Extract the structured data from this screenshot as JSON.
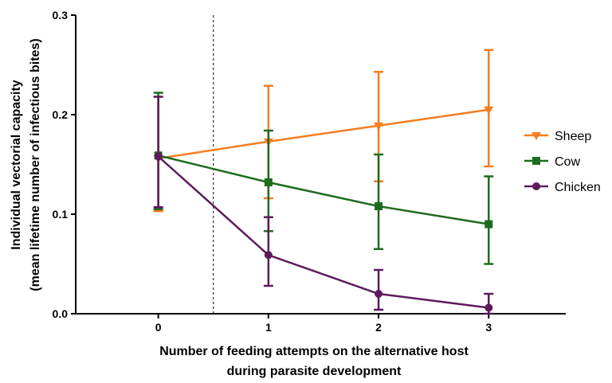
{
  "chart_data": {
    "type": "line",
    "xlabel_lines": [
      "Number of feeding attempts on the alternative host",
      "during parasite development"
    ],
    "ylabel_lines": [
      "Individual vectorial capacity",
      "(mean lifetime number of infectious bites)"
    ],
    "x": [
      0,
      1,
      2,
      3
    ],
    "x_tick_labels": [
      "0",
      "1",
      "2",
      "3"
    ],
    "xlim": [
      -0.75,
      3.7
    ],
    "ylim": [
      0,
      0.3
    ],
    "y_ticks": [
      0.0,
      0.1,
      0.2,
      0.3
    ],
    "y_tick_labels": [
      "0.0",
      "0.1",
      "0.2",
      "0.3"
    ],
    "reference_line_x": 0.5,
    "grid": false,
    "legend_position": "right",
    "series": [
      {
        "name": "Sheep",
        "color": "#f47d20",
        "marker": "triangle-down",
        "values": [
          0.156,
          0.173,
          0.189,
          0.205
        ],
        "err_low": [
          0.103,
          0.116,
          0.133,
          0.148
        ],
        "err_high": [
          0.218,
          0.229,
          0.243,
          0.265
        ]
      },
      {
        "name": "Cow",
        "color": "#1f6b1f",
        "marker": "square",
        "values": [
          0.159,
          0.132,
          0.108,
          0.09
        ],
        "err_low": [
          0.105,
          0.083,
          0.065,
          0.05
        ],
        "err_high": [
          0.222,
          0.184,
          0.16,
          0.138
        ]
      },
      {
        "name": "Chicken",
        "color": "#5c1a5c",
        "marker": "circle",
        "values": [
          0.158,
          0.059,
          0.02,
          0.006
        ],
        "err_low": [
          0.107,
          0.028,
          0.004,
          0.0
        ],
        "err_high": [
          0.218,
          0.097,
          0.044,
          0.02
        ]
      }
    ]
  }
}
